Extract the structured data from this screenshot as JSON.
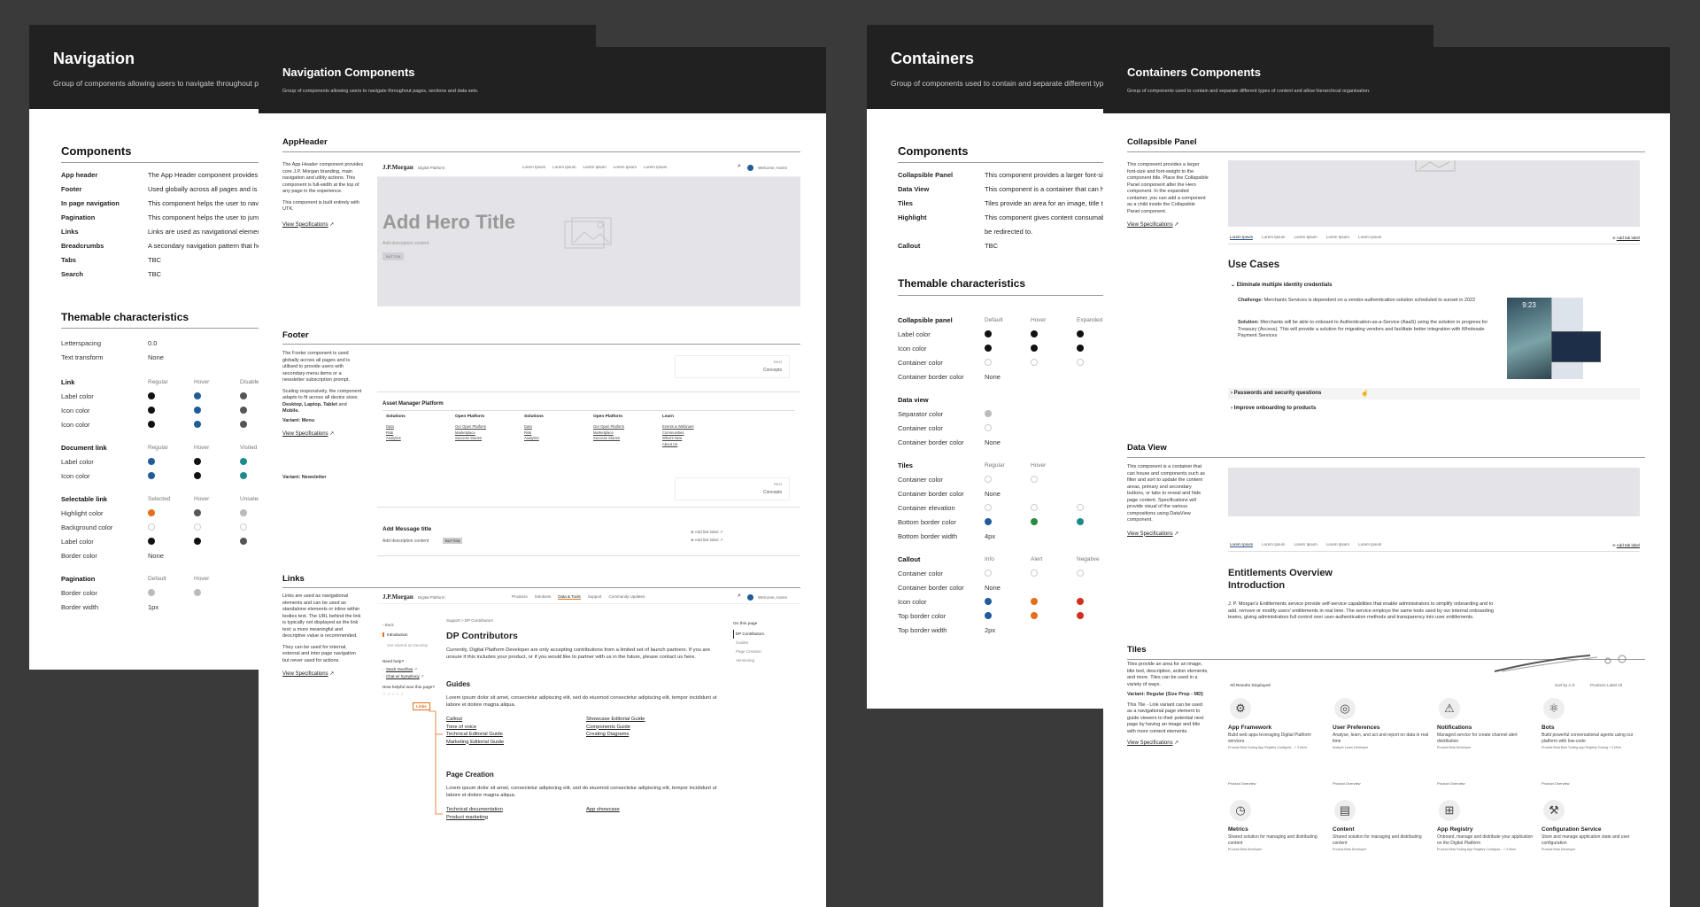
{
  "sheet_nav": {
    "title": "Navigation",
    "desc": "Group of components allowing users to navigate throughout pages, sections and data sets.",
    "components_heading": "Components",
    "components": [
      {
        "name": "App header",
        "desc": "The App Header component provides core J.P. Morgan branding, main navigation and utility actions."
      },
      {
        "name": "Footer",
        "desc": "Used globally across all pages and is utilised to provide users with secondary menu items."
      },
      {
        "name": "In page navigation",
        "desc": "This component helps the user to navigate through the content of a long page."
      },
      {
        "name": "Pagination",
        "desc": "This component helps the user to jump between pages of content."
      },
      {
        "name": "Links",
        "desc": "Links are used as navigational elements and can be used as standalone elements."
      },
      {
        "name": "Breadcrumbs",
        "desc": "A secondary navigation pattern that helps users understand the location of the page."
      },
      {
        "name": "Tabs",
        "desc": "TBC"
      },
      {
        "name": "Search",
        "desc": "TBC"
      }
    ],
    "themable_heading": "Themable characteristics",
    "letterspacing_label": "Letterspacing",
    "letterspacing_value": "0.0",
    "texttransform_label": "Text transform",
    "texttransform_value": "None",
    "link": {
      "title": "Link",
      "cols": [
        "Regular",
        "Hover",
        "Disabled"
      ],
      "rows": [
        "Label color",
        "Icon color",
        "Icon color"
      ]
    },
    "doclink": {
      "title": "Document link",
      "cols": [
        "Regular",
        "Hover",
        "Visited"
      ],
      "rows": [
        "Label color",
        "Icon color"
      ]
    },
    "sellink": {
      "title": "Selectable link",
      "cols": [
        "Selected",
        "Hover",
        "Unselected"
      ],
      "rows": [
        "Highlight color",
        "Background color",
        "Label color",
        "Border color"
      ],
      "border_value": "None"
    },
    "pagination": {
      "title": "Pagination",
      "cols": [
        "Default",
        "Hover"
      ],
      "rows": [
        "Border color",
        "Border width"
      ],
      "width_value": "1px"
    }
  },
  "sheet_navc": {
    "title": "Navigation Components",
    "desc": "Group of components allowing users to navigate throughout pages, sections and data sets.",
    "appheader": {
      "title": "AppHeader",
      "desc1": "The App Header component provides core J.P. Morgan branding, main navigation and utility actions. This component is full-width at the top of any page in the experience.",
      "desc2": "This component is built entirely with UTK.",
      "spec": "View Specifications",
      "logo": "J.P.Morgan",
      "logo_sub": "Digital Platform",
      "menu": [
        "Lorem Ipsum",
        "Lorem Ipsum",
        "Lorem Ipsum",
        "Lorem Ipsum",
        "Lorem Ipsum"
      ],
      "user": "Welcome, Karen",
      "hero_title": "Add Hero Title",
      "hero_desc": "Add description content",
      "hero_btn": "BUTTON"
    },
    "footer": {
      "title": "Footer",
      "desc1": "The Footer component is used globally across all pages and is utilised to provide users with secondary-menu items or a newsletter subscription prompt.",
      "desc2": "Scaling responsively, the component adapts to fit across all device sizes",
      "desc2b": "Desktop, Laptop, Tablet",
      "desc2c": "and",
      "desc2d": "Mobile.",
      "variant_menu": "Variant: Menu",
      "spec": "View Specifications",
      "next": "Next",
      "concepts": "Concepts",
      "platform": "Asset Manager Platform",
      "cols": [
        {
          "h": "Solutions",
          "items": [
            "Data",
            "Risk",
            "Analytics"
          ]
        },
        {
          "h": "Open Platform",
          "items": [
            "Our Open Platform",
            "Marketplace",
            "Success Stories"
          ]
        },
        {
          "h": "Solutions",
          "items": [
            "Data",
            "Risk",
            "Analytics"
          ]
        },
        {
          "h": "Open Platform",
          "items": [
            "Our Open Platform",
            "Marketplace",
            "Success Stories"
          ]
        },
        {
          "h": "Learn",
          "items": [
            "Events & Webinars",
            "Communities",
            "What's New",
            "About Us"
          ]
        }
      ],
      "variant_news": "Variant: Newsletter",
      "msg_title": "Add Message title",
      "msg_desc": "Add description content",
      "msg_btn": "BUTTON",
      "add_link1": "Add link label",
      "add_link2": "Add link label"
    },
    "links": {
      "title": "Links",
      "desc1": "Links are used as navigational elements and can be used as standalone elements or inline within bodies text. The URL behind the link is typically not displayed as the link text; a more meaningful and descriptive value is recommended.",
      "desc2": "They can be used for internal, external and inter page navigation but never used for actions.",
      "spec": "View Specifications",
      "menu": [
        "Products",
        "Solutions",
        "Data & Tools",
        "Support",
        "Community Updates"
      ],
      "user": "Welcome, Karen",
      "breadcrumb": "Support  >  DP Contributors",
      "back": "Back",
      "left_items": [
        "Introduction",
        "Get started as Develop"
      ],
      "need_help": "Need help?",
      "help_items": [
        "Stack Overflow",
        "Chat w/ Symphony"
      ],
      "helpful": "How helpful was this page?",
      "links_tag": "Links",
      "h": "DP Contributors",
      "p": "Currently, Digital Platform Developer are only accepting contributions from a limited set of launch partners. If you are unsure if this includes your product, or if you would like to partner with us in the future, please contact us here.",
      "guides": "Guides",
      "guides_p": "Lorem ipsum dolor sit amet, consectetur adipiscing elit, sed do eiusmod consectetur adipiscing elit, tempor incididunt ut labore et dolore magna aliqua.",
      "g_left": [
        "Callout",
        "Tone of voice",
        "Technical Editorial Guide",
        "Marketing Editorial Guide"
      ],
      "g_right": [
        "Showcase Editorial Guide",
        "Components Guide",
        "Creating Diagrams"
      ],
      "page_creation": "Page Creation",
      "pc_p": "Lorem ipsum dolor sit amet, consectetur adipiscing elit, sed do eiusmod consectetur adipiscing elit, tempor incididunt ut labore et dolore magna aliqua.",
      "pc_left": [
        "Technical documentation",
        "Product marketing"
      ],
      "pc_right": [
        "App showcase"
      ],
      "on_page": "On this page",
      "on_items": [
        "DP Contributors",
        "Guides",
        "Page Creation",
        "Versioning"
      ]
    }
  },
  "sheet_cont": {
    "title": "Containers",
    "desc": "Group of components used to contain and separate different types of content and allow hierarchical organisation.",
    "components_heading": "Components",
    "components": [
      {
        "name": "Collapsible Panel",
        "desc": "This component provides a larger font-size and font-weight to the component title."
      },
      {
        "name": "Data View",
        "desc": "This component is a container that can house filter and sort controls."
      },
      {
        "name": "Tiles",
        "desc": "Tiles provide an area for an image, title text, description, action elements."
      },
      {
        "name": "Highlight",
        "desc": "This component gives content consumable focus and can"
      },
      {
        "name": "",
        "desc": "be redirected to."
      },
      {
        "name": "Callout",
        "desc": "TBC"
      }
    ],
    "themable_heading": "Themable characteristics",
    "collapsible": {
      "title": "Collapsible panel",
      "cols": [
        "Default",
        "Hover",
        "Expanded"
      ],
      "rows": [
        "Label color",
        "Icon color",
        "Container color",
        "Container border color"
      ],
      "border_value": "None"
    },
    "dataview": {
      "title": "Data view",
      "rows": [
        "Separator color",
        "Container color",
        "Container border color"
      ],
      "border_value": "None"
    },
    "tiles": {
      "title": "Tiles",
      "cols": [
        "Regular",
        "Hover"
      ],
      "rows": [
        "Container color",
        "Container border color",
        "Container elevation",
        "Bottom border color",
        "Bottom border width"
      ],
      "border_value": "None",
      "width_value": "4px"
    },
    "callout": {
      "title": "Callout",
      "cols": [
        "Info",
        "Alert",
        "Negative"
      ],
      "rows": [
        "Container color",
        "Container border color",
        "Icon color",
        "Top border color",
        "Top border width"
      ],
      "border_value": "None",
      "width_value": "2px"
    }
  },
  "sheet_contc": {
    "title": "Containers Components",
    "desc": "Group of components used to contain and separate different types of content and allow hierarchical organisation.",
    "collapsible": {
      "title": "Collapsible Panel",
      "desc": "This component provides a larger font-size and font-weight to the component title. Place the Collapsible Panel component after the Hero component. In the expanded container, you can add a component as a child inside the Collapsible Panel component.",
      "spec": "View Specifications",
      "tabs": [
        "Lorem Ipsum",
        "Lorem Ipsum",
        "Lorem Ipsum",
        "Lorem Ipsum",
        "Lorem Ipsum"
      ],
      "add_tab": "Add tab label",
      "use_cases": "Use Cases",
      "item1": "Eliminate multiple identity credentials",
      "challenge_l": "Challenge:",
      "challenge": "Merchants Services is dependent on a vendor-authentication solution scheduled to sunset in 2022",
      "solution_l": "Solution:",
      "solution": "Merchants will be able to onboard to Authentication-as-a-Service (AaaS) using the solution in progress for Treasury (Access). This will provide a solution for migrating vendors and facilitate better integration with Wholesale Payment Services",
      "phone_time": "9:23",
      "item2": "Passwords and security questions",
      "item3": "Improve onboarding to products"
    },
    "dataview": {
      "title": "Data View",
      "desc": "This component is a container that can house and components such as filter and sort to update the content areas, primary and secondary buttons, or tabs to reveal and hide page content. Specifications will provide visual of the various compositions using DataView component.",
      "spec": "View Specifications",
      "tabs": [
        "Lorem Ipsum",
        "Lorem Ipsum",
        "Lorem Ipsum",
        "Lorem Ipsum",
        "Lorem Ipsum"
      ],
      "add_tab": "Add tab label",
      "h": "Entitlements Overview",
      "h2": "Introduction",
      "p": "J. P. Morgan's Entitlements service provide self-service capabilities that enable administrators to simplify onboarding and to add, remove or modify users' entitlements in real time. The service employs the same tools used by our internal onboarding teams, giving administrators full control over user-authentication methods and transparency into user entitlements."
    },
    "tiles": {
      "title": "Tiles",
      "desc1": "Tiles provide an area for an image, title text, description, action elements, and more. Tiles can be used in a variety of ways.",
      "variant": "Variant: Regular (Size Prop - MD)",
      "desc2": "This Tile - Link variant can be used as a navigational page element to guide viewers to their potential next page by having an image and title with more content elements.",
      "spec": "View Specifications",
      "all_results": "All Results Displayed",
      "sort": "Sort by  A-Z",
      "filter": "Products Label  All",
      "items": [
        {
          "name": "App Framework",
          "desc": "Build web apps leveraging Digital Platform services",
          "meta": "Product Beta  Tooling  App Registry  Configura...  + 3 More",
          "link": "Product Overview"
        },
        {
          "name": "User Preferences",
          "desc": "Analyse, learn, and act and report on data in real time",
          "meta": "Analyze  Learn  Developer",
          "link": "Product Overview"
        },
        {
          "name": "Notifications",
          "desc": "Managed service for create channel alert distribution",
          "meta": "Product Beta  Developer",
          "link": "Product Overview"
        },
        {
          "name": "Bots",
          "desc": "Build powerful conversational agents using our platform with low-code",
          "meta": "Product Beta  Bots  Tooling  App Registry  Tooling  + 3 More",
          "link": "Product Overview"
        },
        {
          "name": "Metrics",
          "desc": "Shared solution for managing and distributing content",
          "meta": "Product Beta  Developer",
          "link": ""
        },
        {
          "name": "Content",
          "desc": "Shared solution for managing and distributing content",
          "meta": "Product Beta  Developer",
          "link": ""
        },
        {
          "name": "App Registry",
          "desc": "Onboard, manage and distribute your application on the Digital Platform",
          "meta": "Product Beta  Tooling  App Registry  Configura...  + 3 More",
          "link": ""
        },
        {
          "name": "Configuration Service",
          "desc": "Store and manage application state and user configuration",
          "meta": "Product Beta  Developer",
          "link": ""
        }
      ]
    }
  }
}
